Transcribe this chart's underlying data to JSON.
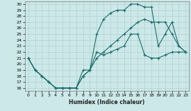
{
  "xlabel": "Humidex (Indice chaleur)",
  "bg_color": "#cce8e8",
  "grid_color": "#b0d0d0",
  "line_color": "#1a6b6b",
  "xlim": [
    -0.5,
    23.5
  ],
  "ylim": [
    15.5,
    30.5
  ],
  "xticks": [
    0,
    1,
    2,
    3,
    4,
    5,
    6,
    7,
    8,
    9,
    10,
    11,
    12,
    13,
    14,
    15,
    16,
    17,
    18,
    19,
    20,
    21,
    22,
    23
  ],
  "yticks": [
    16,
    17,
    18,
    19,
    20,
    21,
    22,
    23,
    24,
    25,
    26,
    27,
    28,
    29,
    30
  ],
  "line1_x": [
    0,
    1,
    2,
    3,
    4,
    5,
    6,
    7,
    8,
    9,
    10,
    11,
    12,
    13,
    14,
    15,
    16,
    17,
    18,
    19,
    20,
    21,
    22,
    23
  ],
  "line1_y": [
    21,
    19,
    18,
    17,
    16,
    16,
    16,
    16,
    19,
    19,
    22,
    21.5,
    22,
    22.5,
    23,
    25,
    25,
    21.5,
    21,
    21,
    21.5,
    22,
    22,
    22
  ],
  "line2_x": [
    0,
    1,
    2,
    3,
    4,
    5,
    6,
    7,
    8,
    9,
    10,
    11,
    12,
    13,
    14,
    15,
    16,
    17,
    18,
    19,
    20,
    21,
    22,
    23
  ],
  "line2_y": [
    21,
    19,
    18,
    17,
    16,
    16,
    16,
    16,
    18,
    19,
    25,
    27.5,
    28.5,
    29,
    29,
    30,
    30,
    29.5,
    29.5,
    23,
    25,
    27,
    23,
    22
  ],
  "line3_x": [
    0,
    1,
    2,
    3,
    4,
    5,
    6,
    7,
    8,
    9,
    10,
    11,
    12,
    13,
    14,
    15,
    16,
    17,
    18,
    19,
    20,
    21,
    22,
    23
  ],
  "line3_y": [
    21,
    19,
    18,
    17,
    16,
    16,
    16,
    16,
    18,
    19,
    21,
    22,
    23,
    24,
    25,
    26,
    27,
    27.5,
    27,
    27,
    27,
    25,
    23,
    22
  ]
}
